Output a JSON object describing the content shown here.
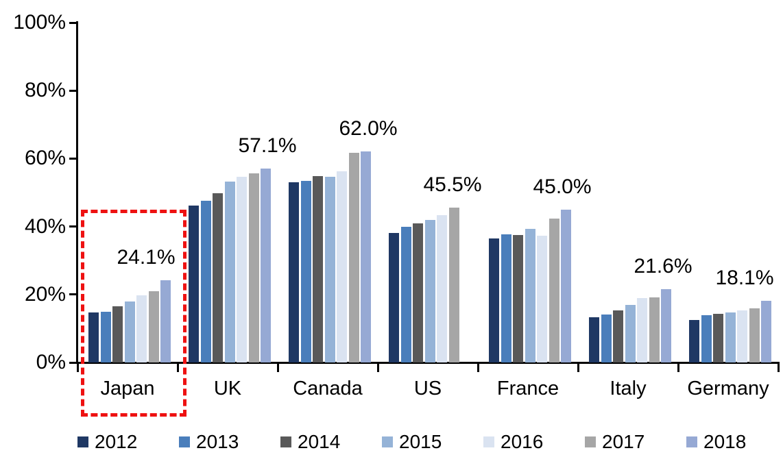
{
  "chart_data": {
    "type": "bar",
    "title": "",
    "xlabel": "",
    "ylabel": "",
    "categories": [
      "Japan",
      "UK",
      "Canada",
      "US",
      "France",
      "Italy",
      "Germany"
    ],
    "series": [
      {
        "name": "2012",
        "color": "#1F3864",
        "values": [
          14.7,
          46.2,
          53.0,
          38.1,
          36.5,
          13.3,
          12.6
        ]
      },
      {
        "name": "2013",
        "color": "#4A7EBB",
        "values": [
          14.9,
          47.6,
          53.4,
          40.0,
          37.8,
          14.2,
          14.0
        ]
      },
      {
        "name": "2014",
        "color": "#595959",
        "values": [
          16.6,
          49.8,
          54.9,
          41.0,
          37.6,
          15.4,
          14.4
        ]
      },
      {
        "name": "2015",
        "color": "#95B3D7",
        "values": [
          17.9,
          53.2,
          54.7,
          42.0,
          39.3,
          16.9,
          14.7
        ]
      },
      {
        "name": "2016",
        "color": "#DAE3F1",
        "values": [
          19.7,
          54.6,
          56.2,
          43.4,
          37.2,
          19.0,
          15.3
        ]
      },
      {
        "name": "2017",
        "color": "#A6A6A6",
        "values": [
          21.0,
          55.7,
          61.6,
          45.5,
          42.3,
          19.2,
          15.9
        ]
      },
      {
        "name": "2018",
        "color": "#96A9D4",
        "values": [
          24.1,
          57.1,
          62.0,
          null,
          45.0,
          21.6,
          18.1
        ]
      }
    ],
    "annotations": [
      {
        "category": "Japan",
        "label": "24.1%",
        "center_dx": 100
      },
      {
        "category": "UK",
        "label": "57.1%",
        "center_dx": 131
      },
      {
        "category": "Canada",
        "label": "62.0%",
        "center_dx": 132
      },
      {
        "category": "US",
        "label": "45.5%",
        "center_dx": 109
      },
      {
        "category": "France",
        "label": "45.0%",
        "center_dx": 123
      },
      {
        "category": "Italy",
        "label": "21.6%",
        "center_dx": 124
      },
      {
        "category": "Germany",
        "label": "18.1%",
        "center_dx": 97
      }
    ],
    "y_axis": {
      "min": 0,
      "max": 100,
      "tick_step": 20,
      "tick_labels": [
        "0%",
        "20%",
        "40%",
        "60%",
        "80%",
        "100%"
      ]
    },
    "grid": false,
    "legend": {
      "position": "bottom",
      "entries": [
        "2012",
        "2013",
        "2014",
        "2015",
        "2016",
        "2017",
        "2018"
      ]
    },
    "highlight": {
      "category": "Japan",
      "style": "red-dashed-box",
      "color": "#ee1111"
    }
  }
}
